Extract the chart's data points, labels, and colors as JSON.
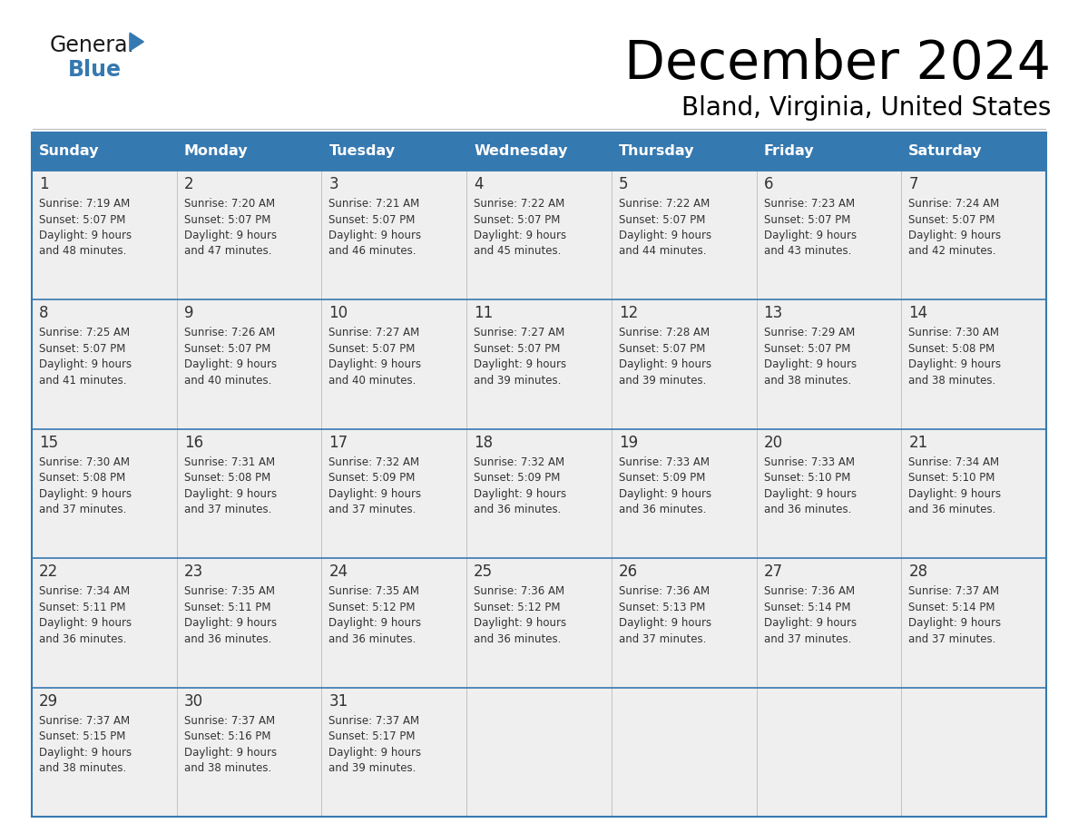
{
  "title": "December 2024",
  "subtitle": "Bland, Virginia, United States",
  "header_color": "#3579b1",
  "header_text_color": "#ffffff",
  "cell_bg_color": "#efefef",
  "cell_bg_white": "#ffffff",
  "day_names": [
    "Sunday",
    "Monday",
    "Tuesday",
    "Wednesday",
    "Thursday",
    "Friday",
    "Saturday"
  ],
  "logo_text1": "General",
  "logo_text2": "Blue",
  "logo_color": "#3579b1",
  "logo_black": "#1a1a1a",
  "border_color": "#3579b1",
  "text_color": "#333333",
  "days": [
    {
      "day": 1,
      "col": 0,
      "row": 0,
      "sunrise": "7:19 AM",
      "sunset": "5:07 PM",
      "daylight": "9 hours and 48 minutes."
    },
    {
      "day": 2,
      "col": 1,
      "row": 0,
      "sunrise": "7:20 AM",
      "sunset": "5:07 PM",
      "daylight": "9 hours and 47 minutes."
    },
    {
      "day": 3,
      "col": 2,
      "row": 0,
      "sunrise": "7:21 AM",
      "sunset": "5:07 PM",
      "daylight": "9 hours and 46 minutes."
    },
    {
      "day": 4,
      "col": 3,
      "row": 0,
      "sunrise": "7:22 AM",
      "sunset": "5:07 PM",
      "daylight": "9 hours and 45 minutes."
    },
    {
      "day": 5,
      "col": 4,
      "row": 0,
      "sunrise": "7:22 AM",
      "sunset": "5:07 PM",
      "daylight": "9 hours and 44 minutes."
    },
    {
      "day": 6,
      "col": 5,
      "row": 0,
      "sunrise": "7:23 AM",
      "sunset": "5:07 PM",
      "daylight": "9 hours and 43 minutes."
    },
    {
      "day": 7,
      "col": 6,
      "row": 0,
      "sunrise": "7:24 AM",
      "sunset": "5:07 PM",
      "daylight": "9 hours and 42 minutes."
    },
    {
      "day": 8,
      "col": 0,
      "row": 1,
      "sunrise": "7:25 AM",
      "sunset": "5:07 PM",
      "daylight": "9 hours and 41 minutes."
    },
    {
      "day": 9,
      "col": 1,
      "row": 1,
      "sunrise": "7:26 AM",
      "sunset": "5:07 PM",
      "daylight": "9 hours and 40 minutes."
    },
    {
      "day": 10,
      "col": 2,
      "row": 1,
      "sunrise": "7:27 AM",
      "sunset": "5:07 PM",
      "daylight": "9 hours and 40 minutes."
    },
    {
      "day": 11,
      "col": 3,
      "row": 1,
      "sunrise": "7:27 AM",
      "sunset": "5:07 PM",
      "daylight": "9 hours and 39 minutes."
    },
    {
      "day": 12,
      "col": 4,
      "row": 1,
      "sunrise": "7:28 AM",
      "sunset": "5:07 PM",
      "daylight": "9 hours and 39 minutes."
    },
    {
      "day": 13,
      "col": 5,
      "row": 1,
      "sunrise": "7:29 AM",
      "sunset": "5:07 PM",
      "daylight": "9 hours and 38 minutes."
    },
    {
      "day": 14,
      "col": 6,
      "row": 1,
      "sunrise": "7:30 AM",
      "sunset": "5:08 PM",
      "daylight": "9 hours and 38 minutes."
    },
    {
      "day": 15,
      "col": 0,
      "row": 2,
      "sunrise": "7:30 AM",
      "sunset": "5:08 PM",
      "daylight": "9 hours and 37 minutes."
    },
    {
      "day": 16,
      "col": 1,
      "row": 2,
      "sunrise": "7:31 AM",
      "sunset": "5:08 PM",
      "daylight": "9 hours and 37 minutes."
    },
    {
      "day": 17,
      "col": 2,
      "row": 2,
      "sunrise": "7:32 AM",
      "sunset": "5:09 PM",
      "daylight": "9 hours and 37 minutes."
    },
    {
      "day": 18,
      "col": 3,
      "row": 2,
      "sunrise": "7:32 AM",
      "sunset": "5:09 PM",
      "daylight": "9 hours and 36 minutes."
    },
    {
      "day": 19,
      "col": 4,
      "row": 2,
      "sunrise": "7:33 AM",
      "sunset": "5:09 PM",
      "daylight": "9 hours and 36 minutes."
    },
    {
      "day": 20,
      "col": 5,
      "row": 2,
      "sunrise": "7:33 AM",
      "sunset": "5:10 PM",
      "daylight": "9 hours and 36 minutes."
    },
    {
      "day": 21,
      "col": 6,
      "row": 2,
      "sunrise": "7:34 AM",
      "sunset": "5:10 PM",
      "daylight": "9 hours and 36 minutes."
    },
    {
      "day": 22,
      "col": 0,
      "row": 3,
      "sunrise": "7:34 AM",
      "sunset": "5:11 PM",
      "daylight": "9 hours and 36 minutes."
    },
    {
      "day": 23,
      "col": 1,
      "row": 3,
      "sunrise": "7:35 AM",
      "sunset": "5:11 PM",
      "daylight": "9 hours and 36 minutes."
    },
    {
      "day": 24,
      "col": 2,
      "row": 3,
      "sunrise": "7:35 AM",
      "sunset": "5:12 PM",
      "daylight": "9 hours and 36 minutes."
    },
    {
      "day": 25,
      "col": 3,
      "row": 3,
      "sunrise": "7:36 AM",
      "sunset": "5:12 PM",
      "daylight": "9 hours and 36 minutes."
    },
    {
      "day": 26,
      "col": 4,
      "row": 3,
      "sunrise": "7:36 AM",
      "sunset": "5:13 PM",
      "daylight": "9 hours and 37 minutes."
    },
    {
      "day": 27,
      "col": 5,
      "row": 3,
      "sunrise": "7:36 AM",
      "sunset": "5:14 PM",
      "daylight": "9 hours and 37 minutes."
    },
    {
      "day": 28,
      "col": 6,
      "row": 3,
      "sunrise": "7:37 AM",
      "sunset": "5:14 PM",
      "daylight": "9 hours and 37 minutes."
    },
    {
      "day": 29,
      "col": 0,
      "row": 4,
      "sunrise": "7:37 AM",
      "sunset": "5:15 PM",
      "daylight": "9 hours and 38 minutes."
    },
    {
      "day": 30,
      "col": 1,
      "row": 4,
      "sunrise": "7:37 AM",
      "sunset": "5:16 PM",
      "daylight": "9 hours and 38 minutes."
    },
    {
      "day": 31,
      "col": 2,
      "row": 4,
      "sunrise": "7:37 AM",
      "sunset": "5:17 PM",
      "daylight": "9 hours and 39 minutes."
    }
  ]
}
